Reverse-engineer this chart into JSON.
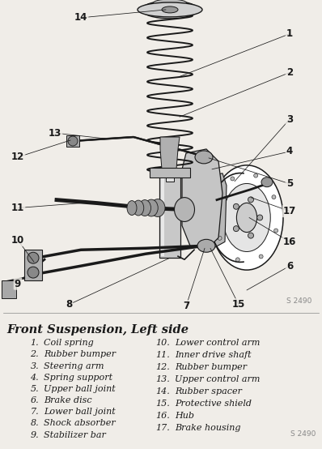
{
  "title": "Front Suspension, Left side",
  "figure_ref": "S 2490",
  "bg_color": "#f0ede8",
  "text_color": "#1a1a1a",
  "legend_title_size": 10.5,
  "legend_text_size": 8.0,
  "items_left": [
    [
      "1.",
      "Coil spring"
    ],
    [
      "2.",
      "Rubber bumper"
    ],
    [
      "3.",
      "Steering arm"
    ],
    [
      "4.",
      "Spring support"
    ],
    [
      "5.",
      "Upper ball joint"
    ],
    [
      "6.",
      "Brake disc"
    ],
    [
      "7.",
      "Lower ball joint"
    ],
    [
      "8.",
      "Shock absorber"
    ],
    [
      "9.",
      "Stabilizer bar"
    ]
  ],
  "items_right": [
    [
      "10.",
      "Lower control arm"
    ],
    [
      "11.",
      "Inner drive shaft"
    ],
    [
      "12.",
      "Rubber bumper"
    ],
    [
      "13.",
      "Upper control arm"
    ],
    [
      "14.",
      "Rubber spacer"
    ],
    [
      "15.",
      "Protective shield"
    ],
    [
      "16.",
      "Hub"
    ],
    [
      "17.",
      "Brake housing"
    ]
  ]
}
